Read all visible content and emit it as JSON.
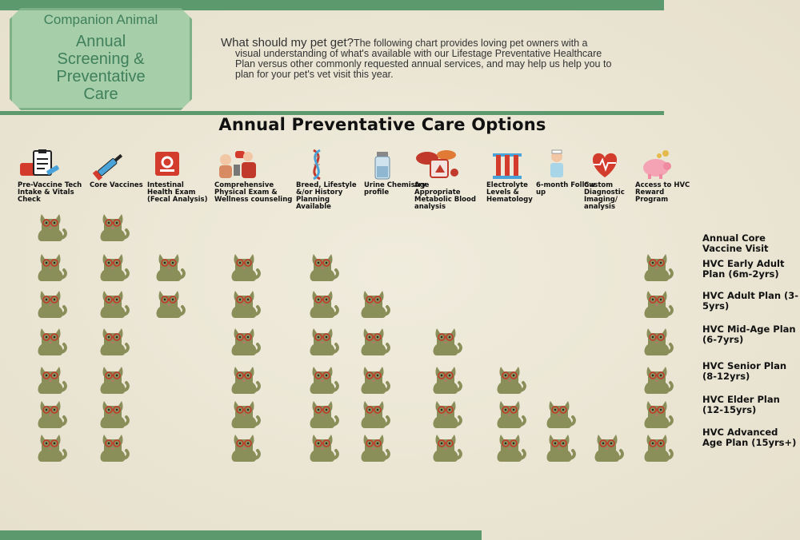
{
  "badge": {
    "top": "Companion Animal",
    "lines": [
      "Annual",
      "Screening &",
      "Preventative",
      "Care"
    ]
  },
  "intro": {
    "question": "What should my pet get?",
    "line1": "The following chart provides loving pet owners with a",
    "line2": "visual understanding of what's available with our Lifestage Preventative Healthcare",
    "line3": "Plan versus other commonly requested annual services, and may help us help you to",
    "line4": "plan for your pet's vet visit this year."
  },
  "chart_title": "Annual Preventative Care Options",
  "columns": [
    {
      "label": "Pre-Vaccine Tech Intake & Vitals Check",
      "icon": "clipboard-icon"
    },
    {
      "label": "Core Vaccines",
      "icon": "syringe-icon"
    },
    {
      "label": "Intestinal Health Exam (Fecal Analysis)",
      "icon": "microscope-icon"
    },
    {
      "label": "Comprehensive Physical Exam & Wellness counseling",
      "icon": "doctor-exam-icon"
    },
    {
      "label": "Breed, Lifestyle &/or History Planning Available",
      "icon": "dna-icon"
    },
    {
      "label": "Urine Chemistry profile",
      "icon": "urine-vial-icon"
    },
    {
      "label": "Age Appropriate Metabolic Blood analysis",
      "icon": "organs-beaker-icon"
    },
    {
      "label": "Electrolyte Levels & Hematology",
      "icon": "test-tubes-icon"
    },
    {
      "label": "6-month Follow up",
      "icon": "nurse-icon"
    },
    {
      "label": "Custom Diagnostic Imaging/ analysis",
      "icon": "heart-ecg-icon"
    },
    {
      "label": "Access to HVC Reward Program",
      "icon": "piggy-bank-icon"
    }
  ],
  "rows": [
    {
      "label": "Annual Core Vaccine Visit",
      "cols": [
        0,
        1
      ]
    },
    {
      "label": "HVC Early Adult Plan (6m-2yrs)",
      "cols": [
        0,
        1,
        2,
        3,
        4,
        10
      ]
    },
    {
      "label": "HVC Adult Plan (3-5yrs)",
      "cols": [
        0,
        1,
        2,
        3,
        4,
        5,
        10
      ]
    },
    {
      "label": "HVC Mid-Age Plan (6-7yrs)",
      "cols": [
        0,
        1,
        3,
        4,
        5,
        6,
        10
      ]
    },
    {
      "label": "HVC Senior Plan (8-12yrs)",
      "cols": [
        0,
        1,
        3,
        4,
        5,
        6,
        7,
        10
      ]
    },
    {
      "label": "HVC Elder Plan (12-15yrs)",
      "cols": [
        0,
        1,
        3,
        4,
        5,
        6,
        7,
        8,
        10
      ]
    },
    {
      "label": "HVC Advanced Age Plan (15yrs+)",
      "cols": [
        0,
        1,
        3,
        4,
        5,
        6,
        7,
        8,
        9,
        10
      ]
    }
  ],
  "marker_icon": "cat-with-glasses-icon",
  "colors": {
    "accent_green": "#5c9a6e",
    "badge_fill": "#a6cfa9",
    "badge_text": "#3f7f5b",
    "cat_fill": "#8a8f5a"
  }
}
